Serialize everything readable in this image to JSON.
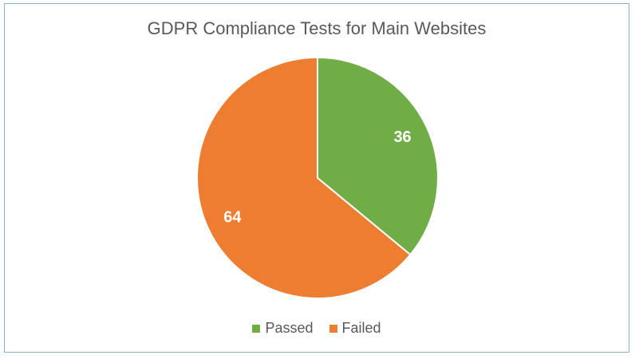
{
  "chart_data": {
    "type": "pie",
    "title": "GDPR Compliance Tests for Main Websites",
    "categories": [
      "Passed",
      "Failed"
    ],
    "values": [
      36,
      64
    ],
    "colors": [
      "#70ad47",
      "#ed7d31"
    ],
    "legend_position": "bottom",
    "data_labels": [
      "36",
      "64"
    ]
  }
}
